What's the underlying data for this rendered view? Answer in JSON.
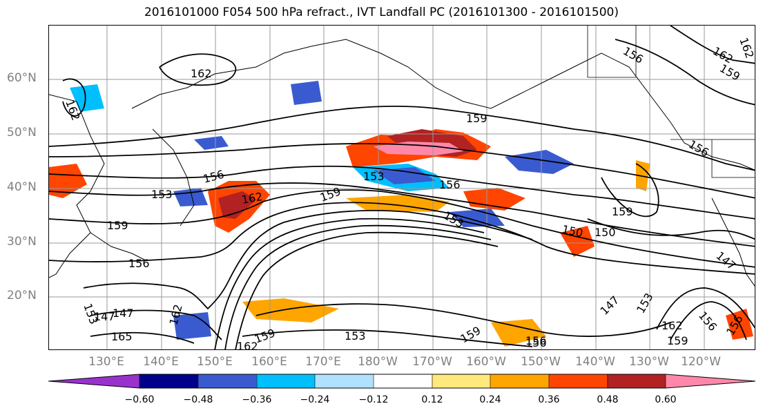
{
  "title": "2016101000 F054 500 hPa refract., IVT Landfall PC (2016101300 - 2016101500)",
  "lat_labels": [
    "60°N",
    "50°N",
    "40°N",
    "30°N",
    "20°N"
  ],
  "lon_labels": [
    "130°E",
    "140°E",
    "150°E",
    "160°E",
    "170°E",
    "180°W",
    "170°W",
    "160°W",
    "150°W",
    "140°W",
    "130°W",
    "120°W"
  ],
  "contour_labels": [
    "162",
    "162",
    "156",
    "159",
    "156",
    "153",
    "153",
    "156",
    "162",
    "159",
    "153",
    "159",
    "150",
    "159",
    "156",
    "147",
    "153",
    "147",
    "162",
    "165",
    "162",
    "159",
    "153",
    "159",
    "156",
    "156",
    "156",
    "162",
    "159",
    "162",
    "150",
    "147",
    "153",
    "147",
    "162",
    "159",
    "156",
    "156"
  ],
  "colorbar": {
    "tick_labels": [
      "−0.60",
      "−0.48",
      "−0.36",
      "−0.24",
      "−0.12",
      "0.12",
      "0.24",
      "0.36",
      "0.48",
      "0.60"
    ],
    "colors": [
      "#9932cc",
      "#00008b",
      "#3a5bd0",
      "#00bfff",
      "#b0e2ff",
      "#ffffff",
      "#ffe87c",
      "#ffa500",
      "#ff4500",
      "#b22222",
      "#ff88aa"
    ]
  }
}
